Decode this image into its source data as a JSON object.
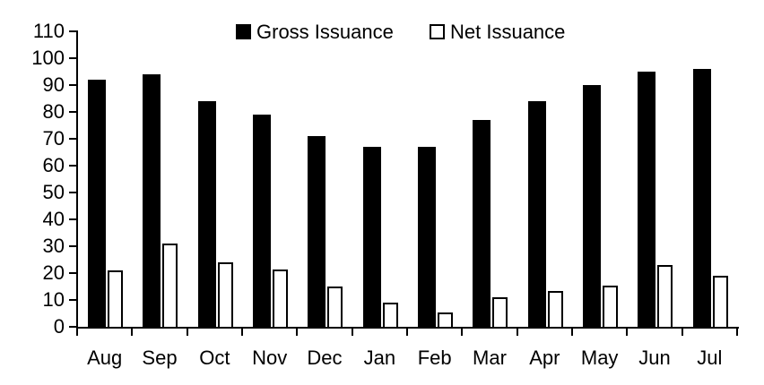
{
  "colors": {
    "background": "#ffffff",
    "gross_bar_fill": "#000000",
    "net_bar_fill": "#ffffff",
    "net_bar_outline": "#000000",
    "axis": "#000000",
    "text": "#000000"
  },
  "chart_data": {
    "type": "bar",
    "title": "",
    "xlabel": "",
    "ylabel": "",
    "categories": [
      "Aug",
      "Sep",
      "Oct",
      "Nov",
      "Dec",
      "Jan",
      "Feb",
      "Mar",
      "Apr",
      "May",
      "Jun",
      "Jul"
    ],
    "series": [
      {
        "name": "Gross Issuance",
        "values": [
          92,
          94,
          84,
          79,
          71,
          67,
          67,
          77,
          84,
          90,
          95,
          96
        ],
        "fill": "#000000"
      },
      {
        "name": "Net Issuance",
        "values": [
          21,
          31,
          24,
          21.5,
          15,
          9,
          5.5,
          11,
          13.5,
          15.5,
          23,
          19
        ],
        "fill": "#ffffff",
        "outline": "#000000"
      }
    ],
    "ylim": [
      0,
      110
    ],
    "y_ticks": [
      0,
      10,
      20,
      30,
      40,
      50,
      60,
      70,
      80,
      90,
      100,
      110
    ],
    "grid": false,
    "legend_position": "top"
  }
}
